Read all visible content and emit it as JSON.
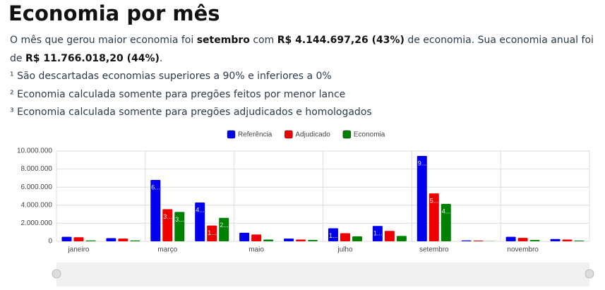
{
  "header": {
    "title": "Economia por mês"
  },
  "summary": [
    "O mês que gerou maior economia foi ",
    "setembro",
    " com ",
    "R$ 4.144.697,26 (43%)",
    " de economia. Sua economia anual foi de ",
    "R$ 11.766.018,20 (44%)",
    "."
  ],
  "notes": [
    "¹ São descartadas economias superiores a 90% e inferiores a 0%",
    "² Economia calculada somente para pregões feitos por menor lance",
    "³ Economia calculada somente para pregões adjudicados e homologados"
  ],
  "chart_data": {
    "type": "bar",
    "categories": [
      "janeiro",
      null,
      "março",
      null,
      "maio",
      null,
      "julho",
      null,
      "setembro",
      null,
      "novembro",
      null
    ],
    "series": [
      {
        "name": "Referência",
        "color": "#0000ee",
        "values": [
          500000,
          350000,
          6800000,
          4300000,
          950000,
          300000,
          1450000,
          1700000,
          9450000,
          100000,
          500000,
          250000
        ],
        "value_labels": [
          null,
          null,
          "6...",
          "4...",
          null,
          null,
          "1...",
          "1...",
          "9...",
          null,
          null,
          null
        ]
      },
      {
        "name": "Adjudicado",
        "color": "#ee0000",
        "values": [
          450000,
          300000,
          3550000,
          1750000,
          750000,
          200000,
          900000,
          1150000,
          5300000,
          80000,
          380000,
          200000
        ],
        "value_labels": [
          null,
          null,
          "3...",
          "1...",
          null,
          null,
          null,
          null,
          "5...",
          null,
          null,
          null
        ]
      },
      {
        "name": "Economia",
        "color": "#008000",
        "values": [
          100000,
          100000,
          3250000,
          2600000,
          200000,
          150000,
          550000,
          600000,
          4144697,
          20000,
          150000,
          80000
        ],
        "value_labels": [
          null,
          null,
          "3...",
          "2...",
          null,
          null,
          null,
          null,
          "4...",
          null,
          null,
          null
        ]
      }
    ],
    "ylim": [
      0,
      10000000
    ],
    "yticks": [
      0,
      {
        "value": 2000000,
        "label": "2.000.000"
      },
      {
        "value": 4000000,
        "label": "4.000.000"
      },
      {
        "value": 6000000,
        "label": "6.000.000"
      },
      {
        "value": 8000000,
        "label": "8.000.000"
      },
      {
        "value": 10000000,
        "label": "10.000.000"
      }
    ],
    "grid": true,
    "legend": "top"
  }
}
